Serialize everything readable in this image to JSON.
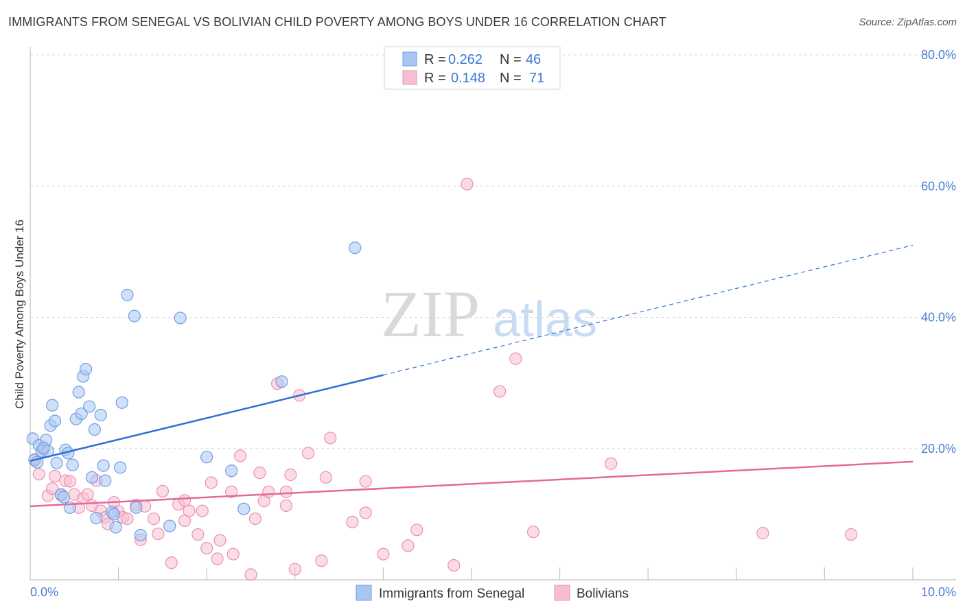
{
  "title": "IMMIGRANTS FROM SENEGAL VS BOLIVIAN CHILD POVERTY AMONG BOYS UNDER 16 CORRELATION CHART",
  "source": "Source: ZipAtlas.com",
  "watermark": {
    "zip": "ZIP",
    "atlas": "atlas"
  },
  "colors": {
    "blue_fill": "#a9c6f2",
    "blue_stroke": "#6f9ee3",
    "blue_line": "#2f6fd3",
    "pink_fill": "#f6bfd1",
    "pink_stroke": "#ec8fb0",
    "pink_line": "#e3699a",
    "grid": "#d8d8d8",
    "tick_text": "#4a7fd0"
  },
  "legend": {
    "rows": [
      {
        "r_label": "R =",
        "r_value": "0.262",
        "n_label": "N =",
        "n_value": "46"
      },
      {
        "r_label": "R =",
        "r_value": "0.148",
        "n_label": "N =",
        "n_value": "71"
      }
    ]
  },
  "bottom_legend": [
    "Immigrants from Senegal",
    "Bolivians"
  ],
  "chart_data": {
    "type": "scatter",
    "title": "IMMIGRANTS FROM SENEGAL VS BOLIVIAN CHILD POVERTY AMONG BOYS UNDER 16 CORRELATION CHART",
    "xlabel": "",
    "ylabel": "Child Poverty Among Boys Under 16",
    "xlim": [
      0,
      10
    ],
    "ylim": [
      0,
      80
    ],
    "x_tick_labels": [
      "0.0%",
      "10.0%"
    ],
    "y_ticks": [
      20,
      40,
      60,
      80
    ],
    "y_tick_labels": [
      "20.0%",
      "40.0%",
      "60.0%",
      "80.0%"
    ],
    "grid": true,
    "series": [
      {
        "name": "Immigrants from Senegal",
        "color": "blue",
        "R": 0.262,
        "N": 46,
        "trend": {
          "x0": 0,
          "y0": 18.1,
          "x1": 4.0,
          "y1": 31.2,
          "dashed_to_x": 10.0,
          "dashed_to_y": 51.0
        },
        "points": [
          [
            0.03,
            21.5
          ],
          [
            0.05,
            18.3
          ],
          [
            0.1,
            20.5
          ],
          [
            0.13,
            19.6
          ],
          [
            0.18,
            21.3
          ],
          [
            0.2,
            19.6
          ],
          [
            0.23,
            23.5
          ],
          [
            0.25,
            26.6
          ],
          [
            0.28,
            24.2
          ],
          [
            0.3,
            17.8
          ],
          [
            0.35,
            13.0
          ],
          [
            0.4,
            19.8
          ],
          [
            0.43,
            19.3
          ],
          [
            0.45,
            11.0
          ],
          [
            0.48,
            17.5
          ],
          [
            0.52,
            24.5
          ],
          [
            0.55,
            28.6
          ],
          [
            0.58,
            25.3
          ],
          [
            0.6,
            31.0
          ],
          [
            0.63,
            32.1
          ],
          [
            0.67,
            26.4
          ],
          [
            0.7,
            15.6
          ],
          [
            0.73,
            22.9
          ],
          [
            0.75,
            9.4
          ],
          [
            0.8,
            25.1
          ],
          [
            0.83,
            17.4
          ],
          [
            0.85,
            15.1
          ],
          [
            0.93,
            10.3
          ],
          [
            0.95,
            10.0
          ],
          [
            0.97,
            8.0
          ],
          [
            1.02,
            17.1
          ],
          [
            1.04,
            27.0
          ],
          [
            1.1,
            43.4
          ],
          [
            1.18,
            40.2
          ],
          [
            1.2,
            11.0
          ],
          [
            1.25,
            6.8
          ],
          [
            1.58,
            8.2
          ],
          [
            1.7,
            39.9
          ],
          [
            2.0,
            18.7
          ],
          [
            2.28,
            16.6
          ],
          [
            2.42,
            10.8
          ],
          [
            2.85,
            30.2
          ],
          [
            3.68,
            50.6
          ],
          [
            0.08,
            17.9
          ],
          [
            0.15,
            20.1
          ],
          [
            0.38,
            12.6
          ]
        ]
      },
      {
        "name": "Bolivians",
        "color": "pink",
        "R": 0.148,
        "N": 71,
        "trend": {
          "x0": 0,
          "y0": 11.2,
          "x1": 10.0,
          "y1": 18.0
        },
        "points": [
          [
            0.05,
            18.2
          ],
          [
            0.1,
            16.1
          ],
          [
            0.15,
            19.9
          ],
          [
            0.2,
            12.8
          ],
          [
            0.25,
            13.9
          ],
          [
            0.28,
            15.8
          ],
          [
            0.35,
            12.9
          ],
          [
            0.4,
            15.1
          ],
          [
            0.45,
            15.0
          ],
          [
            0.5,
            13.0
          ],
          [
            0.55,
            11.0
          ],
          [
            0.6,
            12.4
          ],
          [
            0.65,
            13.0
          ],
          [
            0.7,
            11.3
          ],
          [
            0.75,
            15.1
          ],
          [
            0.8,
            10.5
          ],
          [
            0.85,
            9.5
          ],
          [
            0.88,
            8.5
          ],
          [
            0.95,
            11.8
          ],
          [
            1.0,
            10.4
          ],
          [
            1.05,
            9.5
          ],
          [
            1.1,
            9.3
          ],
          [
            1.2,
            11.4
          ],
          [
            1.25,
            6.1
          ],
          [
            1.3,
            11.2
          ],
          [
            1.4,
            9.3
          ],
          [
            1.45,
            7.0
          ],
          [
            1.5,
            13.5
          ],
          [
            1.6,
            2.6
          ],
          [
            1.68,
            11.5
          ],
          [
            1.75,
            9.0
          ],
          [
            1.8,
            10.5
          ],
          [
            1.9,
            6.9
          ],
          [
            1.95,
            10.5
          ],
          [
            2.0,
            4.8
          ],
          [
            2.05,
            14.8
          ],
          [
            2.12,
            3.2
          ],
          [
            2.15,
            6.0
          ],
          [
            2.28,
            13.4
          ],
          [
            2.3,
            3.9
          ],
          [
            2.38,
            18.9
          ],
          [
            2.5,
            0.8
          ],
          [
            2.6,
            16.3
          ],
          [
            2.65,
            12.0
          ],
          [
            2.7,
            13.4
          ],
          [
            2.8,
            29.9
          ],
          [
            2.9,
            13.4
          ],
          [
            2.95,
            16.0
          ],
          [
            3.0,
            1.6
          ],
          [
            3.05,
            28.1
          ],
          [
            3.15,
            19.3
          ],
          [
            3.3,
            2.9
          ],
          [
            3.35,
            15.6
          ],
          [
            3.4,
            21.6
          ],
          [
            3.65,
            8.8
          ],
          [
            3.8,
            10.2
          ],
          [
            3.8,
            15.0
          ],
          [
            4.0,
            3.9
          ],
          [
            4.28,
            5.2
          ],
          [
            4.38,
            7.6
          ],
          [
            4.8,
            2.2
          ],
          [
            4.95,
            60.3
          ],
          [
            5.32,
            28.7
          ],
          [
            5.5,
            33.7
          ],
          [
            5.7,
            7.3
          ],
          [
            6.58,
            17.7
          ],
          [
            8.3,
            7.1
          ],
          [
            9.3,
            6.9
          ],
          [
            2.55,
            9.3
          ],
          [
            1.75,
            12.1
          ],
          [
            2.9,
            11.3
          ]
        ]
      }
    ]
  }
}
